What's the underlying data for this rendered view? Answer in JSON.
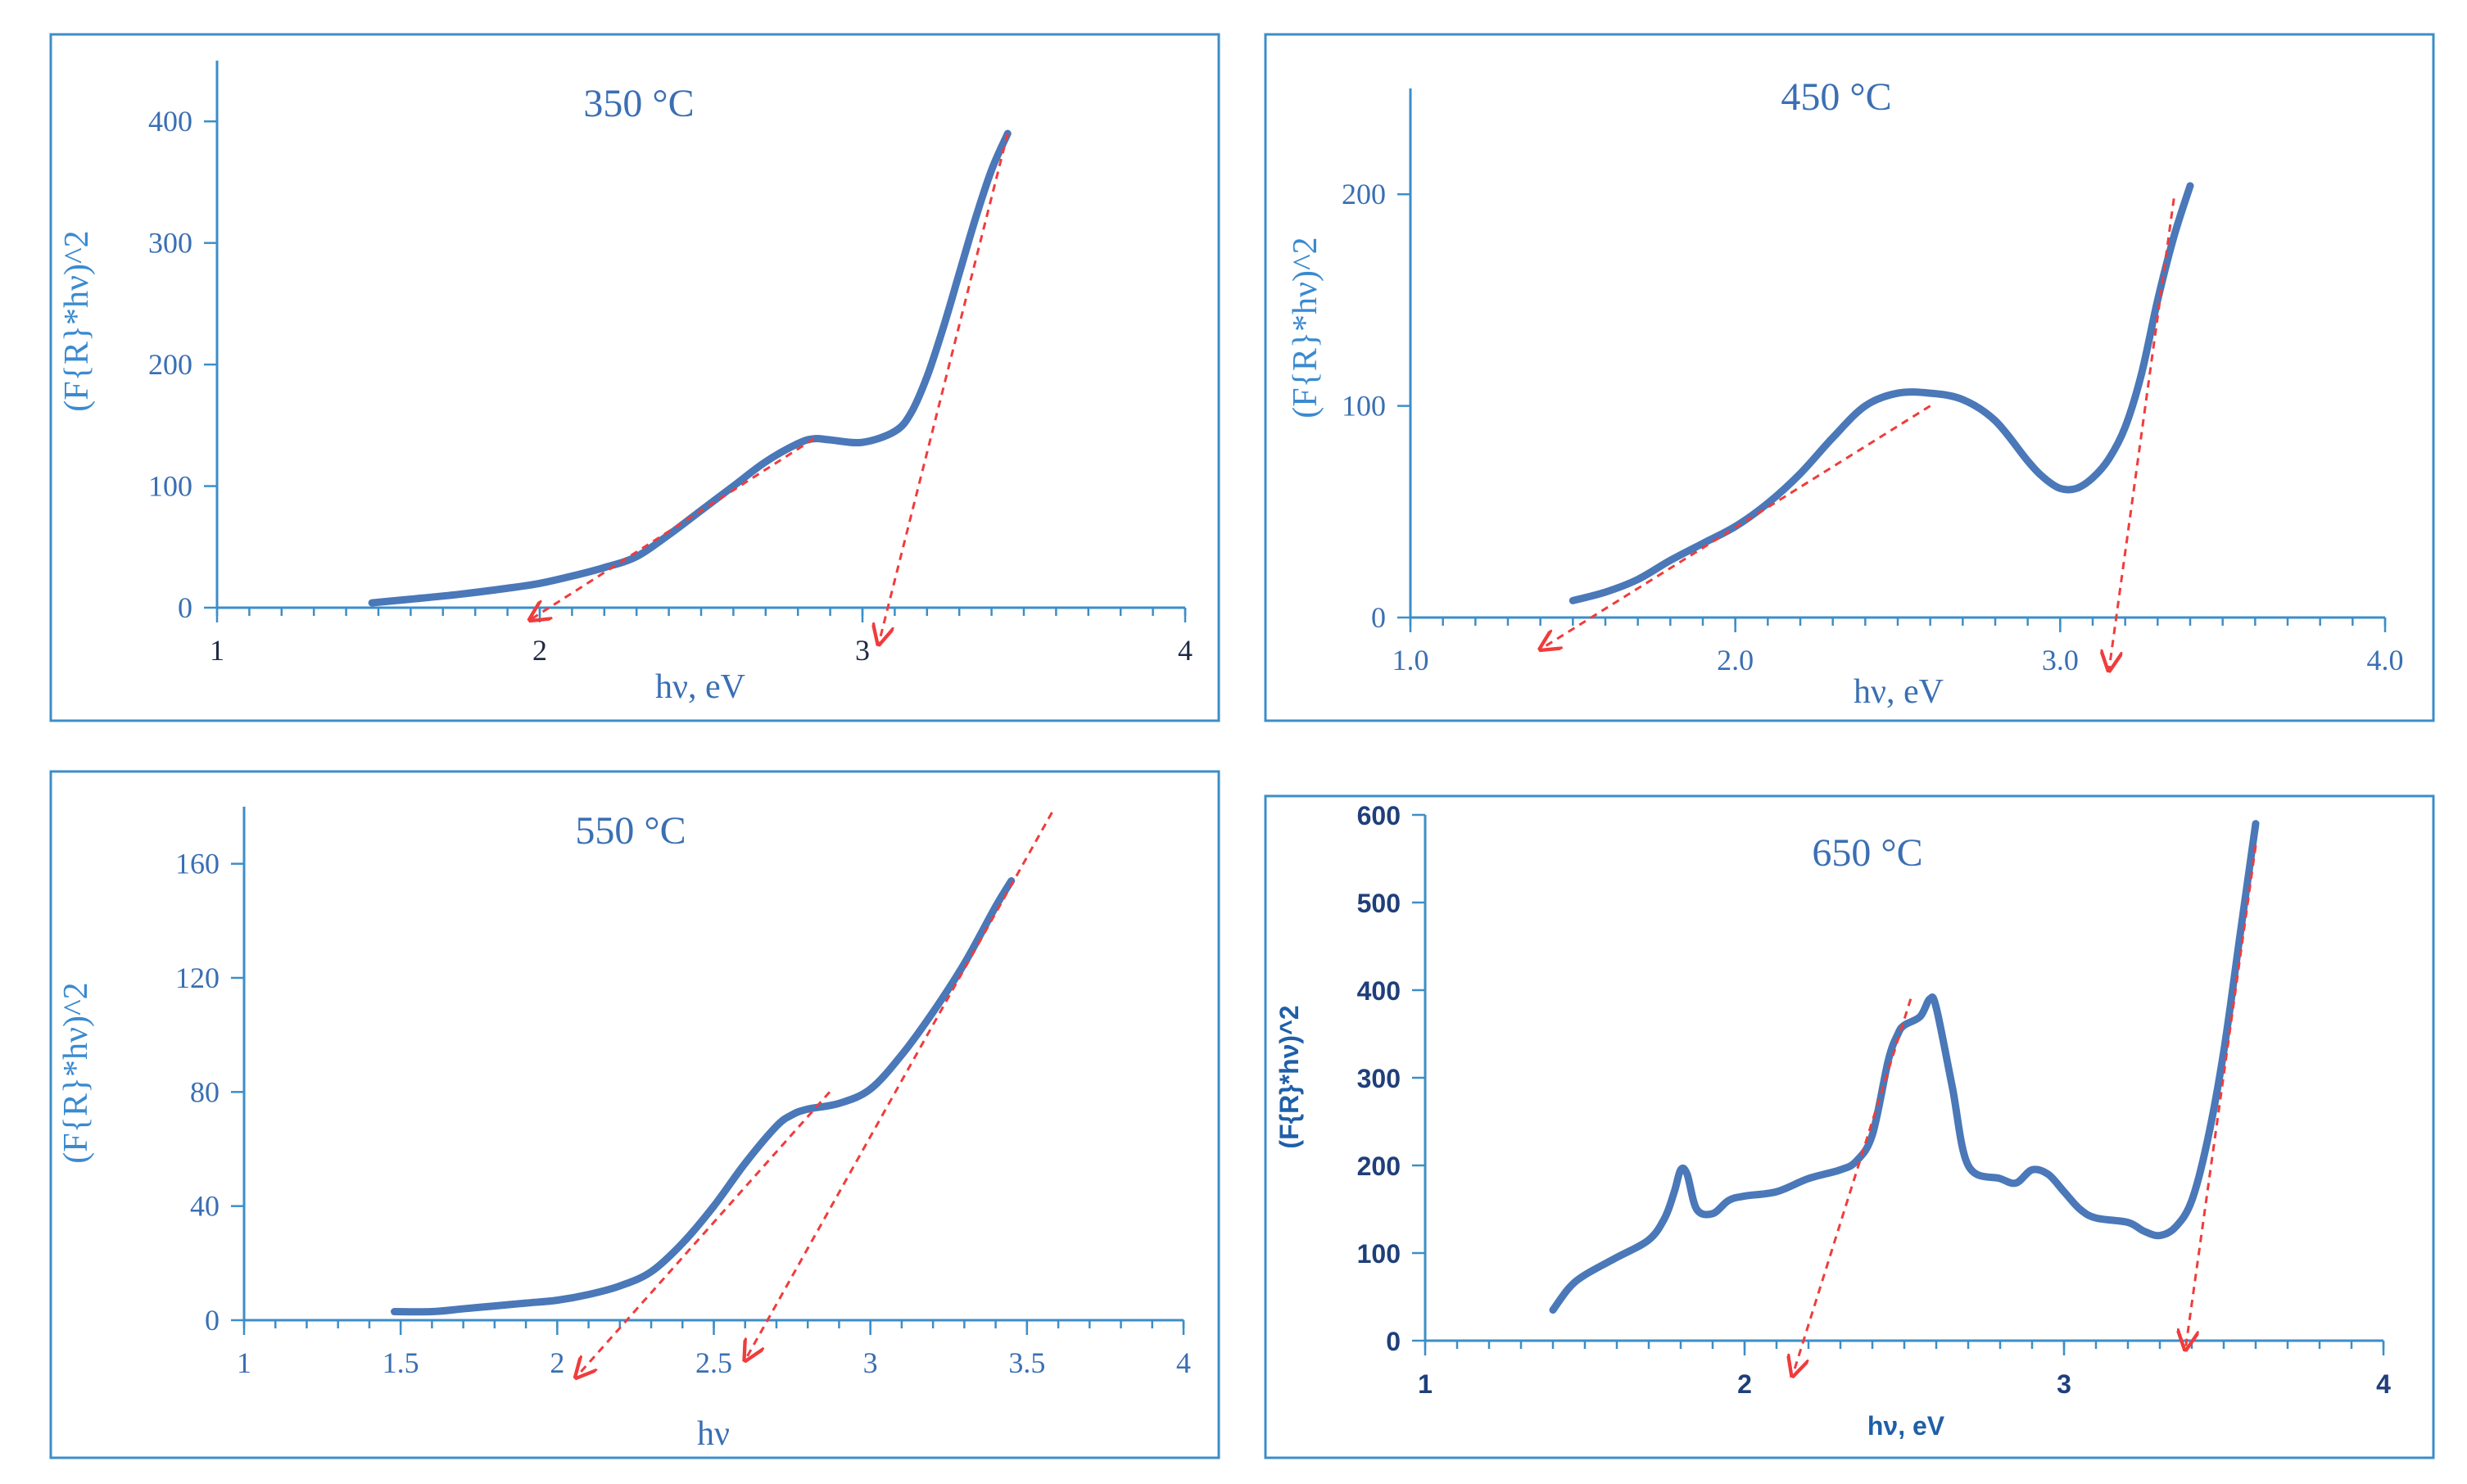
{
  "colors": {
    "frame": "#3c8ec8",
    "axis": "#3c8ec8",
    "curve": "#4a78b8",
    "fit": "#f03c3c",
    "label": "#3a6fb3"
  },
  "chart_data": [
    {
      "type": "line",
      "title": "350 °C",
      "xlabel": "hν, eV",
      "ylabel": "(F{R}*hν)^2",
      "xlim": [
        1,
        4
      ],
      "ylim": [
        0,
        450
      ],
      "xticks": [
        1,
        2,
        3,
        4
      ],
      "xtick_labels": [
        "1",
        "2",
        "3",
        "4"
      ],
      "yticks": [
        0,
        100,
        200,
        300,
        400
      ],
      "ytick_labels": [
        "0",
        "100",
        "200",
        "300",
        "400"
      ],
      "series": [
        {
          "name": "data",
          "x": [
            1.48,
            1.6,
            1.75,
            1.9,
            2.0,
            2.1,
            2.2,
            2.3,
            2.4,
            2.5,
            2.6,
            2.7,
            2.8,
            2.85,
            2.9,
            3.0,
            3.1,
            3.15,
            3.2,
            3.25,
            3.3,
            3.35,
            3.4,
            3.45
          ],
          "y": [
            4,
            7,
            11,
            16,
            20,
            26,
            33,
            42,
            60,
            80,
            100,
            120,
            135,
            139,
            138,
            136,
            145,
            160,
            190,
            230,
            275,
            320,
            360,
            390
          ]
        }
      ],
      "fit_lines": [
        {
          "x": [
            2.85,
            1.97
          ],
          "y": [
            139,
            -10
          ]
        },
        {
          "x": [
            3.45,
            3.05
          ],
          "y": [
            390,
            -30
          ]
        }
      ]
    },
    {
      "type": "line",
      "title": "450 °C",
      "xlabel": "hν, eV",
      "ylabel": "(F{R}*hν)^2",
      "xlim": [
        1.0,
        4.0
      ],
      "ylim": [
        0,
        250
      ],
      "xticks": [
        1.0,
        2.0,
        3.0,
        4.0
      ],
      "xtick_labels": [
        "1.0",
        "2.0",
        "3.0",
        "4.0"
      ],
      "yticks": [
        0,
        100,
        200
      ],
      "ytick_labels": [
        "0",
        "100",
        "200"
      ],
      "series": [
        {
          "name": "data",
          "x": [
            1.5,
            1.6,
            1.7,
            1.8,
            1.9,
            2.0,
            2.1,
            2.2,
            2.3,
            2.4,
            2.5,
            2.6,
            2.7,
            2.8,
            2.9,
            2.95,
            3.0,
            3.05,
            3.1,
            3.15,
            3.2,
            3.25,
            3.3,
            3.35,
            3.4
          ],
          "y": [
            8,
            12,
            18,
            27,
            35,
            43,
            54,
            68,
            85,
            100,
            106,
            106,
            103,
            93,
            74,
            66,
            61,
            61,
            66,
            75,
            90,
            115,
            150,
            180,
            204
          ]
        }
      ],
      "fit_lines": [
        {
          "x": [
            2.6,
            1.4
          ],
          "y": [
            100,
            -15
          ]
        },
        {
          "x": [
            3.35,
            3.15
          ],
          "y": [
            198,
            -25
          ]
        }
      ]
    },
    {
      "type": "line",
      "title": "550 °C",
      "xlabel": "hν",
      "ylabel": "(F{R}*hν)^2",
      "xlim": [
        1,
        4
      ],
      "ylim": [
        0,
        180
      ],
      "xticks": [
        1,
        1.5,
        2,
        2.5,
        3,
        3.5,
        4
      ],
      "xtick_labels": [
        "1",
        "1.5",
        "2",
        "2.5",
        "3",
        "3.5",
        "4"
      ],
      "yticks": [
        0,
        40,
        80,
        120,
        160
      ],
      "ytick_labels": [
        "0",
        "40",
        "80",
        "120",
        "160"
      ],
      "series": [
        {
          "name": "data",
          "x": [
            1.48,
            1.6,
            1.7,
            1.8,
            1.9,
            2.0,
            2.1,
            2.2,
            2.3,
            2.4,
            2.5,
            2.6,
            2.7,
            2.75,
            2.8,
            2.9,
            3.0,
            3.1,
            3.2,
            3.3,
            3.4,
            3.45
          ],
          "y": [
            3,
            3,
            4,
            5,
            6,
            7,
            9,
            12,
            17,
            27,
            40,
            55,
            68,
            72,
            74,
            76,
            81,
            93,
            108,
            125,
            145,
            154
          ]
        }
      ],
      "fit_lines": [
        {
          "x": [
            2.87,
            2.06
          ],
          "y": [
            80,
            -20
          ]
        },
        {
          "x": [
            3.58,
            2.6
          ],
          "y": [
            178,
            -14
          ]
        }
      ]
    },
    {
      "type": "line",
      "title": "650 °C",
      "xlabel": "hν, eV",
      "ylabel": "(F{R}*hν)^2",
      "xlim": [
        1,
        4
      ],
      "ylim": [
        0,
        600
      ],
      "xticks": [
        1,
        2,
        3,
        4
      ],
      "xtick_labels": [
        "1",
        "2",
        "3",
        "4"
      ],
      "yticks": [
        0,
        100,
        200,
        300,
        400,
        500,
        600
      ],
      "ytick_labels": [
        "0",
        "100",
        "200",
        "300",
        "400",
        "500",
        "600"
      ],
      "series": [
        {
          "name": "data",
          "x": [
            1.4,
            1.45,
            1.5,
            1.6,
            1.7,
            1.75,
            1.78,
            1.8,
            1.82,
            1.85,
            1.9,
            1.95,
            2.0,
            2.1,
            2.2,
            2.3,
            2.35,
            2.4,
            2.45,
            2.48,
            2.5,
            2.55,
            2.58,
            2.6,
            2.65,
            2.7,
            2.8,
            2.85,
            2.9,
            2.95,
            3.0,
            3.05,
            3.1,
            3.2,
            3.25,
            3.3,
            3.35,
            3.4,
            3.45,
            3.5,
            3.55,
            3.6
          ],
          "y": [
            35,
            60,
            75,
            95,
            115,
            140,
            170,
            195,
            190,
            150,
            145,
            160,
            165,
            170,
            185,
            195,
            205,
            235,
            320,
            350,
            360,
            370,
            390,
            380,
            290,
            200,
            185,
            180,
            195,
            190,
            170,
            150,
            140,
            135,
            125,
            120,
            130,
            160,
            230,
            330,
            460,
            590
          ]
        }
      ],
      "fit_lines": [
        {
          "x": [
            2.52,
            2.15
          ],
          "y": [
            390,
            -40
          ]
        },
        {
          "x": [
            3.6,
            3.38
          ],
          "y": [
            565,
            -10
          ]
        }
      ]
    }
  ]
}
